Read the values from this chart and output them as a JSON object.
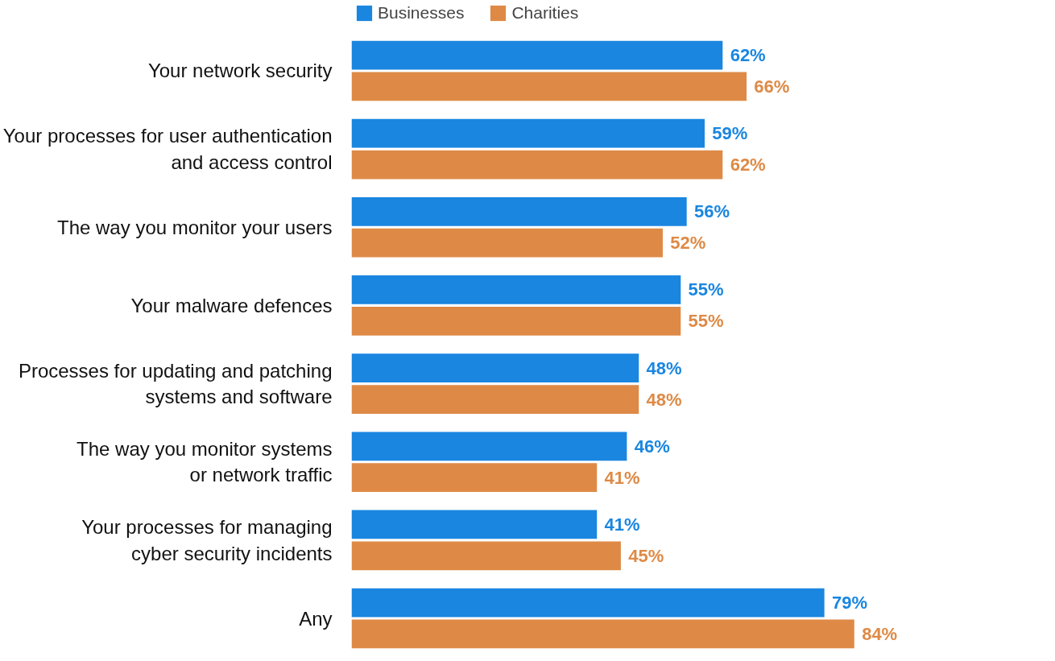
{
  "chart_data": {
    "type": "bar",
    "orientation": "horizontal",
    "categories": [
      "Your network security",
      "Your processes for user authentication\nand access control",
      "The way you monitor your users",
      "Your malware defences",
      "Processes for updating and patching\nsystems and software",
      "The way you monitor systems\nor network traffic",
      "Your processes for managing\ncyber security incidents",
      "Any"
    ],
    "series": [
      {
        "name": "Businesses",
        "color": "#1a86e0",
        "values": [
          62,
          59,
          56,
          55,
          48,
          46,
          41,
          79
        ],
        "value_labels": [
          "62%",
          "59%",
          "56%",
          "55%",
          "48%",
          "46%",
          "41%",
          "79%"
        ]
      },
      {
        "name": "Charities",
        "color": "#de8a46",
        "values": [
          66,
          62,
          52,
          55,
          48,
          41,
          45,
          84
        ],
        "value_labels": [
          "66%",
          "62%",
          "52%",
          "55%",
          "48%",
          "41%",
          "45%",
          "84%"
        ]
      }
    ],
    "legend": "top left",
    "grid": false,
    "tick_labels": "y"
  }
}
